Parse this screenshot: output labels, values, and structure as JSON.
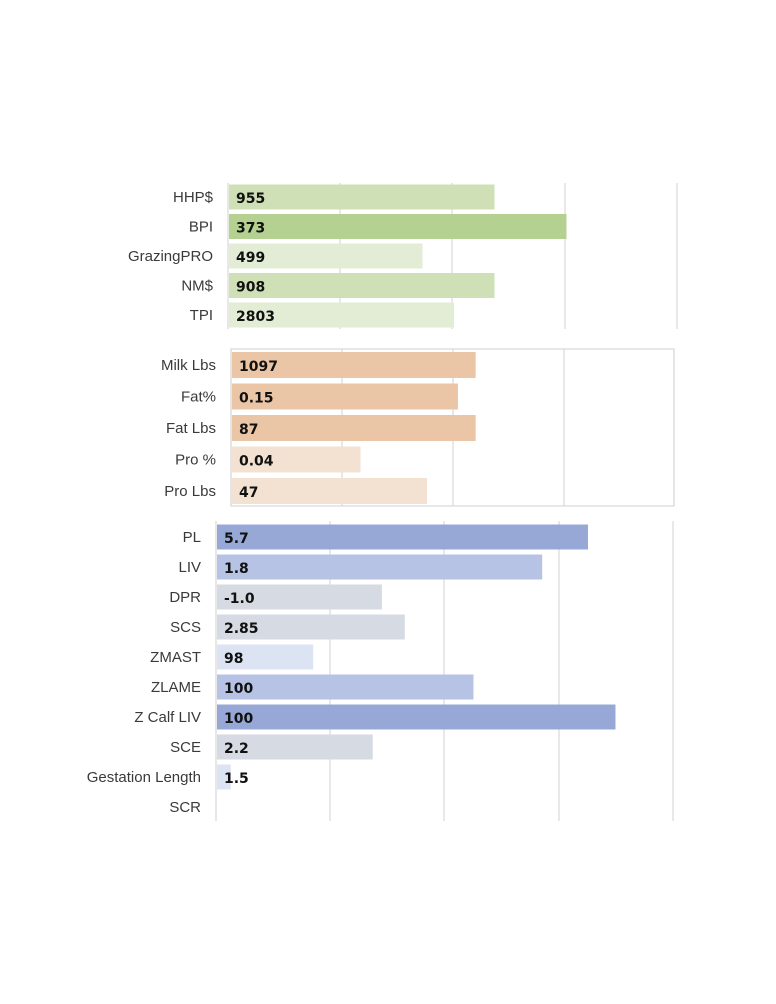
{
  "chart_data": [
    {
      "type": "bar",
      "orientation": "horizontal",
      "categories": [
        "HHP$",
        "BPI",
        "GrazingPRO",
        "NM$",
        "TPI"
      ],
      "values": [
        955,
        373,
        499,
        908,
        2803
      ],
      "value_labels": [
        "955",
        "373",
        "499",
        "908",
        "2803"
      ],
      "bar_fill_fraction": [
        0.59,
        0.75,
        0.43,
        0.59,
        0.5
      ],
      "colors": [
        "#cfe0b6",
        "#b5d191",
        "#e3edd6",
        "#cfe0b6",
        "#e3edd6"
      ],
      "grid": true,
      "frame": false
    },
    {
      "type": "bar",
      "orientation": "horizontal",
      "categories": [
        "Milk Lbs",
        "Fat%",
        "Fat Lbs",
        "Pro %",
        "Pro Lbs"
      ],
      "values": [
        1097,
        0.15,
        87,
        0.04,
        47
      ],
      "value_labels": [
        "1097",
        "0.15",
        "87",
        "0.04",
        "47"
      ],
      "bar_fill_fraction": [
        0.55,
        0.51,
        0.55,
        0.29,
        0.44
      ],
      "colors": [
        "#ebc6a6",
        "#ebc6a6",
        "#ebc6a6",
        "#f3e1d1",
        "#f3e1d1"
      ],
      "grid": true,
      "frame": true
    },
    {
      "type": "bar",
      "orientation": "horizontal",
      "categories": [
        "PL",
        "LIV",
        "DPR",
        "SCS",
        "ZMAST",
        "ZLAME",
        "Z Calf LIV",
        "SCE",
        "Gestation Length",
        "SCR"
      ],
      "values": [
        5.7,
        1.8,
        -1.0,
        2.85,
        98,
        100,
        100,
        2.2,
        1.5,
        null
      ],
      "value_labels": [
        "5.7",
        "1.8",
        "-1.0",
        "2.85",
        "98",
        "100",
        "100",
        "2.2",
        "1.5",
        ""
      ],
      "bar_fill_fraction": [
        0.81,
        0.71,
        0.36,
        0.41,
        0.21,
        0.56,
        0.87,
        0.34,
        0.03,
        0
      ],
      "colors": [
        "#97a8d6",
        "#b6c3e4",
        "#d6dae3",
        "#d6dae3",
        "#dce3f3",
        "#b6c3e4",
        "#97a8d6",
        "#d6dae3",
        "#dce3f3",
        "#dce3f3"
      ],
      "grid": true,
      "frame": false
    }
  ]
}
